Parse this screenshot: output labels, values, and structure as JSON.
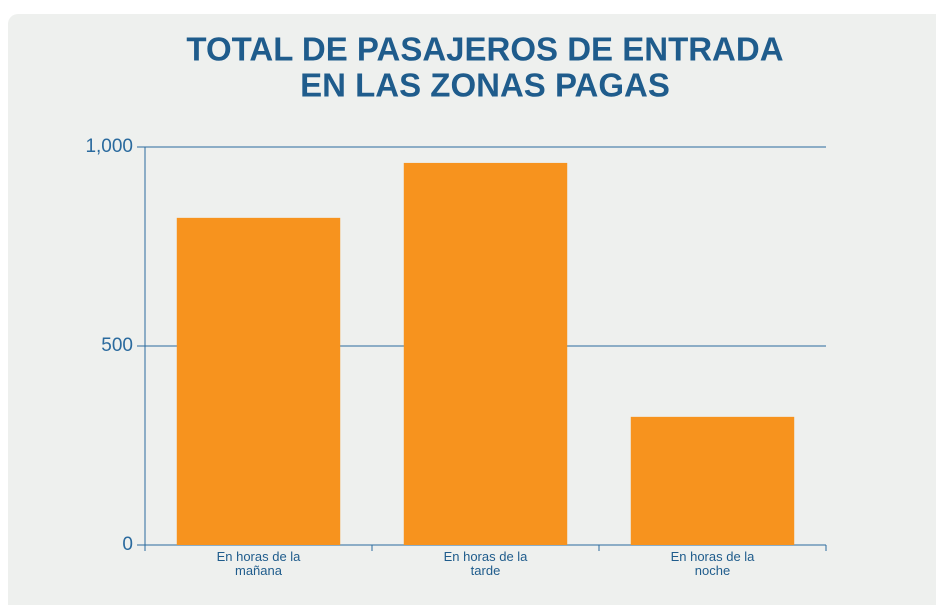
{
  "chart_data": {
    "type": "bar",
    "title": [
      "TOTAL DE PASAJEROS DE ENTRADA",
      "EN LAS ZONAS PAGAS"
    ],
    "categories": [
      "En horas de la mañana",
      "En horas de la tarde",
      "En horas de la noche"
    ],
    "values": [
      822,
      960,
      322
    ],
    "color": "#f7931e",
    "ylim": [
      0,
      1000
    ],
    "yticks": [
      0,
      500,
      {
        "value": 1000,
        "label": "1,000"
      }
    ],
    "grid": true
  }
}
